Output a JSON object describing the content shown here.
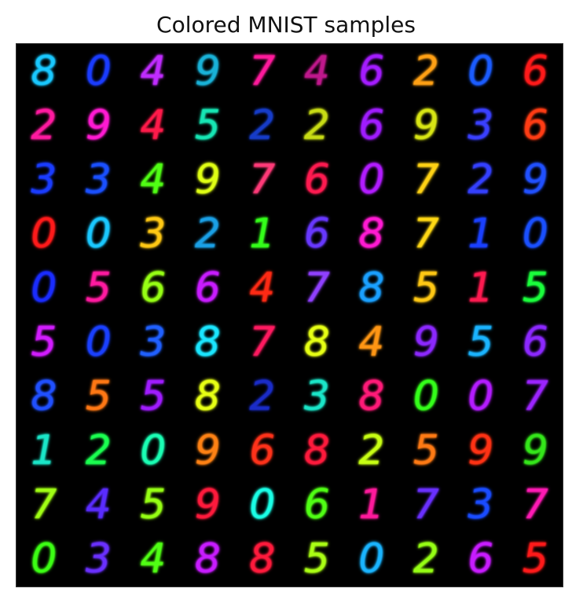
{
  "title": "Colored MNIST samples",
  "samples": [
    [
      [
        "8",
        "#19c8ff"
      ],
      [
        "0",
        "#1a3cff"
      ],
      [
        "4",
        "#c02cff"
      ],
      [
        "9",
        "#19b2d8"
      ],
      [
        "7",
        "#ff1a9c"
      ],
      [
        "4",
        "#c0188c"
      ],
      [
        "6",
        "#a41cff"
      ],
      [
        "2",
        "#ffa014"
      ],
      [
        "0",
        "#1b5cff"
      ],
      [
        "6",
        "#ff1a1a"
      ]
    ],
    [
      [
        "2",
        "#ff1aa0"
      ],
      [
        "9",
        "#ff1ad2"
      ],
      [
        "4",
        "#ff1a4a"
      ],
      [
        "5",
        "#16e6b4"
      ],
      [
        "2",
        "#163cc8"
      ],
      [
        "2",
        "#c8dc14"
      ],
      [
        "6",
        "#a01cff"
      ],
      [
        "9",
        "#d8e614"
      ],
      [
        "3",
        "#3a40ff"
      ],
      [
        "6",
        "#ff3c14"
      ]
    ],
    [
      [
        "3",
        "#1a3cff"
      ],
      [
        "3",
        "#1a50ff"
      ],
      [
        "4",
        "#50ff14"
      ],
      [
        "9",
        "#e0ff14"
      ],
      [
        "7",
        "#ff3a78"
      ],
      [
        "6",
        "#ff1a50"
      ],
      [
        "0",
        "#b21cff"
      ],
      [
        "7",
        "#ffd214"
      ],
      [
        "2",
        "#3440ff"
      ],
      [
        "9",
        "#2050ff"
      ]
    ],
    [
      [
        "0",
        "#ff1a1a"
      ],
      [
        "0",
        "#1ac8ff"
      ],
      [
        "3",
        "#ffc814"
      ],
      [
        "2",
        "#1aa0e6"
      ],
      [
        "1",
        "#34ff1a"
      ],
      [
        "6",
        "#6838ff"
      ],
      [
        "8",
        "#ff1ad2"
      ],
      [
        "7",
        "#ffd814"
      ],
      [
        "1",
        "#1a40ff"
      ],
      [
        "0",
        "#1a50ff"
      ]
    ],
    [
      [
        "0",
        "#1a2cff"
      ],
      [
        "5",
        "#ff1aa0"
      ],
      [
        "6",
        "#96ff14"
      ],
      [
        "6",
        "#c81cff"
      ],
      [
        "4",
        "#ff2a14"
      ],
      [
        "7",
        "#9040ff"
      ],
      [
        "8",
        "#1aa0ff"
      ],
      [
        "5",
        "#ffc814"
      ],
      [
        "1",
        "#ff1a50"
      ],
      [
        "5",
        "#1aff3c"
      ]
    ],
    [
      [
        "5",
        "#d21cff"
      ],
      [
        "0",
        "#1a40ff"
      ],
      [
        "3",
        "#2060ff"
      ],
      [
        "8",
        "#1ae6ff"
      ],
      [
        "7",
        "#ff1a60"
      ],
      [
        "8",
        "#e6ff14"
      ],
      [
        "4",
        "#ff9614"
      ],
      [
        "9",
        "#8c28ff"
      ],
      [
        "5",
        "#1ab4ff"
      ],
      [
        "6",
        "#8c28ff"
      ]
    ],
    [
      [
        "8",
        "#2050ff"
      ],
      [
        "5",
        "#ff7814"
      ],
      [
        "5",
        "#a01cff"
      ],
      [
        "8",
        "#e6ff14"
      ],
      [
        "2",
        "#1a2cc8"
      ],
      [
        "3",
        "#1ae6c8"
      ],
      [
        "8",
        "#ff1a78"
      ],
      [
        "0",
        "#34ff1a"
      ],
      [
        "0",
        "#b41cff"
      ],
      [
        "7",
        "#9c24ff"
      ]
    ],
    [
      [
        "1",
        "#1ae6c8"
      ],
      [
        "2",
        "#1aff50"
      ],
      [
        "0",
        "#1affb4"
      ],
      [
        "9",
        "#ff8214"
      ],
      [
        "6",
        "#ff321a"
      ],
      [
        "8",
        "#ff1a3c"
      ],
      [
        "2",
        "#c8ff14"
      ],
      [
        "5",
        "#ff7a14"
      ],
      [
        "9",
        "#ff3214"
      ],
      [
        "9",
        "#34e61a"
      ]
    ],
    [
      [
        "7",
        "#a0ff14"
      ],
      [
        "4",
        "#5a2cff"
      ],
      [
        "5",
        "#96ff14"
      ],
      [
        "9",
        "#ff1a3c"
      ],
      [
        "0",
        "#1affe6"
      ],
      [
        "6",
        "#50ff14"
      ],
      [
        "1",
        "#ff1a9c"
      ],
      [
        "7",
        "#6a30ff"
      ],
      [
        "3",
        "#1a4cff"
      ],
      [
        "7",
        "#ff1ab4"
      ]
    ],
    [
      [
        "0",
        "#3cff14"
      ],
      [
        "3",
        "#6a30ff"
      ],
      [
        "4",
        "#50ff14"
      ],
      [
        "8",
        "#c81cff"
      ],
      [
        "8",
        "#ff1a3c"
      ],
      [
        "5",
        "#aaff14"
      ],
      [
        "0",
        "#1ab4ff"
      ],
      [
        "2",
        "#96ff14"
      ],
      [
        "6",
        "#c81cff"
      ],
      [
        "5",
        "#ff1a1a"
      ]
    ]
  ]
}
